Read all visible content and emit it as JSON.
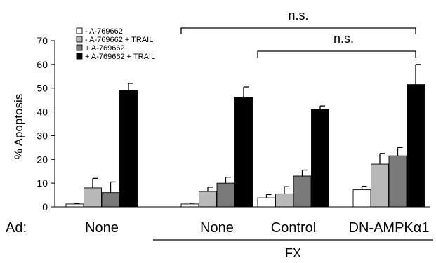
{
  "chart_data": {
    "type": "bar",
    "ylabel": "% Apoptosis",
    "ylim": [
      0,
      70
    ],
    "yticks": [
      0,
      10,
      20,
      30,
      40,
      50,
      60,
      70
    ],
    "row_label": "Ad:",
    "categories": [
      "None",
      "None",
      "Control",
      "DN-AMPKα1"
    ],
    "group_label": {
      "text": "FX",
      "covers_categories": [
        1,
        2,
        3
      ]
    },
    "series": [
      {
        "name": "- A-769662",
        "color": "#ffffff",
        "values": [
          1.2,
          1.2,
          3.8,
          7.2
        ],
        "errors": [
          0.3,
          0.4,
          1.4,
          1.5
        ]
      },
      {
        "name": "- A-769662 + TRAIL",
        "color": "#b8b8b8",
        "values": [
          8,
          6.5,
          5.5,
          18
        ],
        "errors": [
          4,
          1.8,
          3,
          4.5
        ]
      },
      {
        "name": "+ A-769662",
        "color": "#7a7a7a",
        "values": [
          6,
          10,
          13,
          21.5
        ],
        "errors": [
          4.5,
          2.5,
          2.5,
          3.5
        ]
      },
      {
        "name": "+ A-769662 + TRAIL",
        "color": "#000000",
        "values": [
          49,
          46,
          41,
          51.5
        ],
        "errors": [
          3,
          4.5,
          1.5,
          8.5
        ]
      }
    ],
    "significance": [
      {
        "label": "n.s.",
        "from_category": 1,
        "to_category": 3
      },
      {
        "label": "n.s.",
        "from_category": 2,
        "to_category": 3
      }
    ],
    "legend_position": "top-left",
    "grid": false
  }
}
